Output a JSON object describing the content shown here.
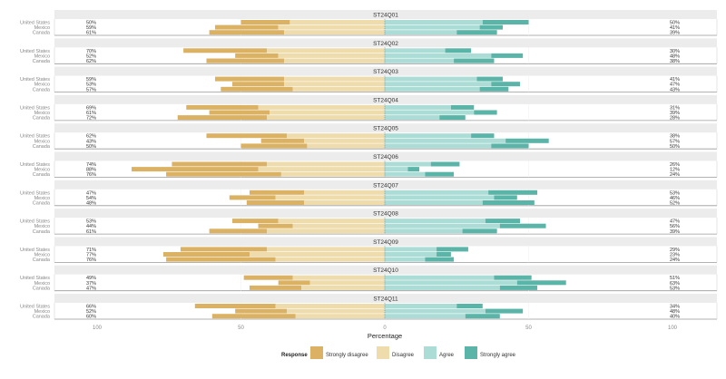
{
  "chart_data": {
    "type": "bar",
    "subtype": "diverging-stacked-likert",
    "xlabel": "Percentage",
    "xlim": [
      -100,
      100
    ],
    "x_ticks": [
      "100",
      "50",
      "0",
      "50",
      "100"
    ],
    "legend": {
      "title": "Response",
      "placement": "bottom",
      "entries": [
        "Strongly disagree",
        "Disagree",
        "Agree",
        "Strongly agree"
      ]
    },
    "colors": {
      "Strongly disagree": "#dbb263",
      "Disagree": "#eedcad",
      "Agree": "#acdcd6",
      "Strongly agree": "#5ab4a7",
      "strip": "#ececec"
    },
    "countries": [
      "United States",
      "Mexico",
      "Canada"
    ],
    "panels": [
      {
        "title": "ST24Q01",
        "rows": [
          {
            "country": "United States",
            "values": [
              17,
              33,
              34,
              16
            ],
            "left_label": "50%",
            "right_label": "50%"
          },
          {
            "country": "Mexico",
            "values": [
              22,
              37,
              33,
              8
            ],
            "left_label": "59%",
            "right_label": "41%"
          },
          {
            "country": "Canada",
            "values": [
              26,
              35,
              25,
              14
            ],
            "left_label": "61%",
            "right_label": "39%"
          }
        ]
      },
      {
        "title": "ST24Q02",
        "rows": [
          {
            "country": "United States",
            "values": [
              29,
              41,
              21,
              9
            ],
            "left_label": "70%",
            "right_label": "30%"
          },
          {
            "country": "Mexico",
            "values": [
              15,
              37,
              37,
              11
            ],
            "left_label": "52%",
            "right_label": "48%"
          },
          {
            "country": "Canada",
            "values": [
              27,
              35,
              24,
              14
            ],
            "left_label": "62%",
            "right_label": "38%"
          }
        ]
      },
      {
        "title": "ST24Q03",
        "rows": [
          {
            "country": "United States",
            "values": [
              24,
              35,
              32,
              9
            ],
            "left_label": "59%",
            "right_label": "41%"
          },
          {
            "country": "Mexico",
            "values": [
              18,
              35,
              37,
              10
            ],
            "left_label": "53%",
            "right_label": "47%"
          },
          {
            "country": "Canada",
            "values": [
              25,
              32,
              33,
              10
            ],
            "left_label": "57%",
            "right_label": "43%"
          }
        ]
      },
      {
        "title": "ST24Q04",
        "rows": [
          {
            "country": "United States",
            "values": [
              25,
              44,
              23,
              8
            ],
            "left_label": "69%",
            "right_label": "31%"
          },
          {
            "country": "Mexico",
            "values": [
              21,
              40,
              31,
              8
            ],
            "left_label": "61%",
            "right_label": "39%"
          },
          {
            "country": "Canada",
            "values": [
              31,
              41,
              19,
              9
            ],
            "left_label": "72%",
            "right_label": "28%"
          }
        ]
      },
      {
        "title": "ST24Q05",
        "rows": [
          {
            "country": "United States",
            "values": [
              28,
              34,
              30,
              8
            ],
            "left_label": "62%",
            "right_label": "38%"
          },
          {
            "country": "Mexico",
            "values": [
              15,
              28,
              42,
              15
            ],
            "left_label": "43%",
            "right_label": "57%"
          },
          {
            "country": "Canada",
            "values": [
              23,
              27,
              37,
              13
            ],
            "left_label": "50%",
            "right_label": "50%"
          }
        ]
      },
      {
        "title": "ST24Q06",
        "rows": [
          {
            "country": "United States",
            "values": [
              33,
              41,
              16,
              10
            ],
            "left_label": "74%",
            "right_label": "26%"
          },
          {
            "country": "Mexico",
            "values": [
              44,
              44,
              8,
              4
            ],
            "left_label": "88%",
            "right_label": "12%"
          },
          {
            "country": "Canada",
            "values": [
              40,
              36,
              14,
              10
            ],
            "left_label": "76%",
            "right_label": "24%"
          }
        ]
      },
      {
        "title": "ST24Q07",
        "rows": [
          {
            "country": "United States",
            "values": [
              19,
              28,
              36,
              17
            ],
            "left_label": "47%",
            "right_label": "53%"
          },
          {
            "country": "Mexico",
            "values": [
              16,
              38,
              38,
              8
            ],
            "left_label": "54%",
            "right_label": "46%"
          },
          {
            "country": "Canada",
            "values": [
              20,
              28,
              34,
              18
            ],
            "left_label": "48%",
            "right_label": "52%"
          }
        ]
      },
      {
        "title": "ST24Q08",
        "rows": [
          {
            "country": "United States",
            "values": [
              16,
              37,
              35,
              12
            ],
            "left_label": "53%",
            "right_label": "47%"
          },
          {
            "country": "Mexico",
            "values": [
              12,
              32,
              40,
              16
            ],
            "left_label": "44%",
            "right_label": "56%"
          },
          {
            "country": "Canada",
            "values": [
              20,
              41,
              27,
              12
            ],
            "left_label": "61%",
            "right_label": "39%"
          }
        ]
      },
      {
        "title": "ST24Q09",
        "rows": [
          {
            "country": "United States",
            "values": [
              30,
              41,
              18,
              11
            ],
            "left_label": "71%",
            "right_label": "29%"
          },
          {
            "country": "Mexico",
            "values": [
              30,
              47,
              18,
              5
            ],
            "left_label": "77%",
            "right_label": "23%"
          },
          {
            "country": "Canada",
            "values": [
              38,
              38,
              14,
              10
            ],
            "left_label": "76%",
            "right_label": "24%"
          }
        ]
      },
      {
        "title": "ST24Q10",
        "rows": [
          {
            "country": "United States",
            "values": [
              17,
              32,
              38,
              13
            ],
            "left_label": "49%",
            "right_label": "51%"
          },
          {
            "country": "Mexico",
            "values": [
              11,
              26,
              46,
              17
            ],
            "left_label": "37%",
            "right_label": "63%"
          },
          {
            "country": "Canada",
            "values": [
              18,
              29,
              40,
              13
            ],
            "left_label": "47%",
            "right_label": "53%"
          }
        ]
      },
      {
        "title": "ST24Q11",
        "rows": [
          {
            "country": "United States",
            "values": [
              28,
              38,
              25,
              9
            ],
            "left_label": "66%",
            "right_label": "34%"
          },
          {
            "country": "Mexico",
            "values": [
              18,
              34,
              35,
              13
            ],
            "left_label": "52%",
            "right_label": "48%"
          },
          {
            "country": "Canada",
            "values": [
              29,
              31,
              28,
              12
            ],
            "left_label": "60%",
            "right_label": "40%"
          }
        ]
      }
    ]
  }
}
